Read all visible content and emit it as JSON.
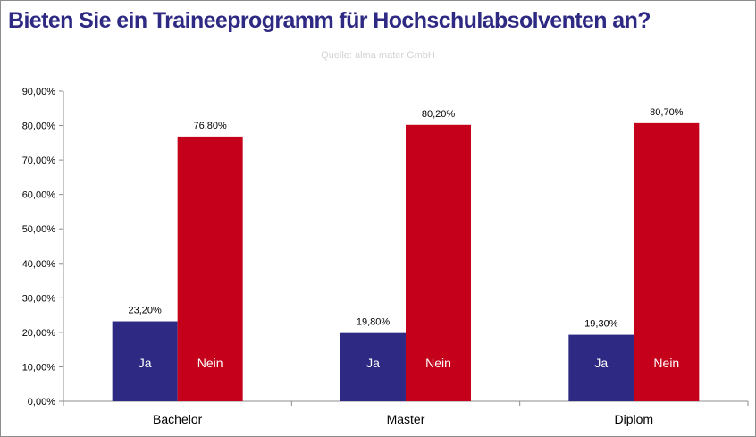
{
  "chart_data": {
    "type": "bar",
    "title": "Bieten Sie ein Traineeprogramm für Hochschulabsolventen an?",
    "subtitle": "Quelle: alma mater GmbH",
    "categories": [
      "Bachelor",
      "Master",
      "Diplom"
    ],
    "series": [
      {
        "name": "Ja",
        "values": [
          23.2,
          19.8,
          19.3
        ],
        "labels": [
          "23,20%",
          "19,80%",
          "19,30%"
        ],
        "color": "#2e2a83"
      },
      {
        "name": "Nein",
        "values": [
          76.8,
          80.2,
          80.7
        ],
        "labels": [
          "76,80%",
          "80,20%",
          "80,70%"
        ],
        "color": "#c4001a"
      }
    ],
    "ylim": [
      0,
      90
    ],
    "yticks": [
      0,
      10,
      20,
      30,
      40,
      50,
      60,
      70,
      80,
      90
    ],
    "ytick_labels": [
      "0,00%",
      "10,00%",
      "20,00%",
      "30,00%",
      "40,00%",
      "50,00%",
      "60,00%",
      "70,00%",
      "80,00%",
      "90,00%"
    ],
    "grid": false,
    "legend": "none"
  }
}
